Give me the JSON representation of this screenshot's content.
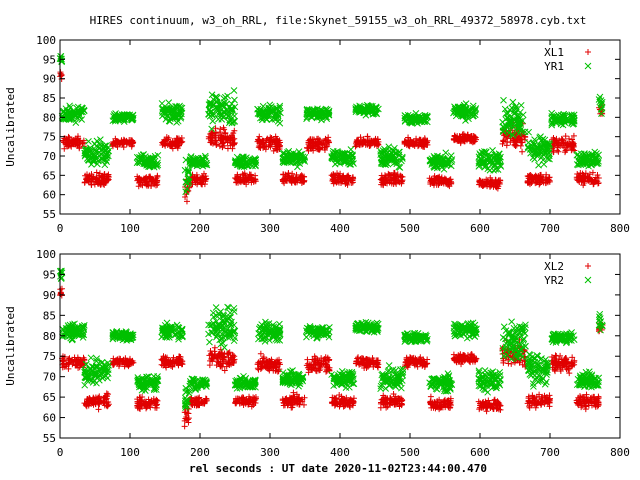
{
  "title": "HIRES continuum, w3_oh_RRL, file:Skynet_59155_w3_oh_RRL_49372_58978.cyb.txt",
  "xlabel": "rel seconds : UT date 2020-11-02T23:44:00.470",
  "colors": {
    "red": "#e00000",
    "green": "#00c000"
  },
  "chart_data": [
    {
      "type": "scatter",
      "ylabel": "Uncalibrated",
      "xlim": [
        0,
        800
      ],
      "ylim": [
        55,
        100
      ],
      "xticks": [
        0,
        100,
        200,
        300,
        400,
        500,
        600,
        700,
        800
      ],
      "yticks": [
        55,
        60,
        65,
        70,
        75,
        80,
        85,
        90,
        95,
        100
      ],
      "legend_position": "top-right",
      "series": [
        {
          "name": "XL1",
          "marker": "plus",
          "color": "#e00000",
          "segments": [
            {
              "x": [
                0,
                3
              ],
              "y": 90.5,
              "spread": 1.0
            },
            {
              "x": [
                3,
                35
              ],
              "y": 73.5,
              "spread": 1.2
            },
            {
              "x": [
                35,
                70
              ],
              "y": 64.0,
              "spread": 1.2
            },
            {
              "x": [
                75,
                105
              ],
              "y": 73.5,
              "spread": 0.8
            },
            {
              "x": [
                110,
                140
              ],
              "y": 63.5,
              "spread": 1.2
            },
            {
              "x": [
                145,
                175
              ],
              "y": 73.5,
              "spread": 1.0
            },
            {
              "x": [
                178,
                185
              ],
              "y": 61.0,
              "spread": 2.5
            },
            {
              "x": [
                185,
                210
              ],
              "y": 64.0,
              "spread": 1.0
            },
            {
              "x": [
                212,
                250
              ],
              "y": 74.5,
              "spread": 2.0
            },
            {
              "x": [
                250,
                280
              ],
              "y": 64.0,
              "spread": 1.0
            },
            {
              "x": [
                282,
                315
              ],
              "y": 73.0,
              "spread": 1.5
            },
            {
              "x": [
                318,
                350
              ],
              "y": 64.0,
              "spread": 1.2
            },
            {
              "x": [
                352,
                385
              ],
              "y": 73.0,
              "spread": 1.5
            },
            {
              "x": [
                388,
                420
              ],
              "y": 64.0,
              "spread": 1.2
            },
            {
              "x": [
                422,
                455
              ],
              "y": 73.5,
              "spread": 1.0
            },
            {
              "x": [
                458,
                490
              ],
              "y": 64.0,
              "spread": 1.2
            },
            {
              "x": [
                492,
                525
              ],
              "y": 73.5,
              "spread": 1.0
            },
            {
              "x": [
                528,
                560
              ],
              "y": 63.5,
              "spread": 1.0
            },
            {
              "x": [
                562,
                595
              ],
              "y": 74.5,
              "spread": 1.0
            },
            {
              "x": [
                598,
                630
              ],
              "y": 63.0,
              "spread": 1.0
            },
            {
              "x": [
                632,
                665
              ],
              "y": 75.0,
              "spread": 2.5
            },
            {
              "x": [
                668,
                700
              ],
              "y": 64.0,
              "spread": 1.2
            },
            {
              "x": [
                702,
                735
              ],
              "y": 73.0,
              "spread": 1.5
            },
            {
              "x": [
                738,
                770
              ],
              "y": 64.0,
              "spread": 1.2
            },
            {
              "x": [
                770,
                775
              ],
              "y": 82.0,
              "spread": 1.5
            }
          ]
        },
        {
          "name": "YR1",
          "marker": "cross",
          "color": "#00c000",
          "segments": [
            {
              "x": [
                0,
                3
              ],
              "y": 95.0,
              "spread": 1.0
            },
            {
              "x": [
                3,
                35
              ],
              "y": 81.0,
              "spread": 1.5
            },
            {
              "x": [
                35,
                70
              ],
              "y": 71.0,
              "spread": 2.5
            },
            {
              "x": [
                75,
                105
              ],
              "y": 80.0,
              "spread": 0.8
            },
            {
              "x": [
                110,
                140
              ],
              "y": 68.5,
              "spread": 1.5
            },
            {
              "x": [
                145,
                175
              ],
              "y": 81.0,
              "spread": 1.8
            },
            {
              "x": [
                178,
                185
              ],
              "y": 65.0,
              "spread": 3.0
            },
            {
              "x": [
                185,
                210
              ],
              "y": 68.5,
              "spread": 1.0
            },
            {
              "x": [
                212,
                250
              ],
              "y": 82.0,
              "spread": 3.5
            },
            {
              "x": [
                250,
                280
              ],
              "y": 68.5,
              "spread": 1.0
            },
            {
              "x": [
                282,
                315
              ],
              "y": 81.0,
              "spread": 2.0
            },
            {
              "x": [
                318,
                350
              ],
              "y": 69.5,
              "spread": 1.5
            },
            {
              "x": [
                352,
                385
              ],
              "y": 81.0,
              "spread": 1.2
            },
            {
              "x": [
                388,
                420
              ],
              "y": 69.5,
              "spread": 1.5
            },
            {
              "x": [
                422,
                455
              ],
              "y": 82.0,
              "spread": 1.0
            },
            {
              "x": [
                458,
                490
              ],
              "y": 69.5,
              "spread": 2.0
            },
            {
              "x": [
                492,
                525
              ],
              "y": 79.5,
              "spread": 1.0
            },
            {
              "x": [
                528,
                560
              ],
              "y": 68.5,
              "spread": 1.5
            },
            {
              "x": [
                562,
                595
              ],
              "y": 81.5,
              "spread": 1.5
            },
            {
              "x": [
                598,
                630
              ],
              "y": 69.0,
              "spread": 2.0
            },
            {
              "x": [
                632,
                665
              ],
              "y": 79.0,
              "spread": 3.5
            },
            {
              "x": [
                668,
                700
              ],
              "y": 72.0,
              "spread": 3.0
            },
            {
              "x": [
                702,
                735
              ],
              "y": 79.5,
              "spread": 1.0
            },
            {
              "x": [
                738,
                770
              ],
              "y": 69.0,
              "spread": 1.5
            },
            {
              "x": [
                770,
                775
              ],
              "y": 83.5,
              "spread": 1.5
            }
          ]
        }
      ]
    },
    {
      "type": "scatter",
      "ylabel": "Uncalibrated",
      "xlim": [
        0,
        800
      ],
      "ylim": [
        55,
        100
      ],
      "xticks": [
        0,
        100,
        200,
        300,
        400,
        500,
        600,
        700,
        800
      ],
      "yticks": [
        55,
        60,
        65,
        70,
        75,
        80,
        85,
        90,
        95,
        100
      ],
      "legend_position": "top-right",
      "series": [
        {
          "name": "XL2",
          "marker": "plus",
          "color": "#e00000",
          "segments": [
            {
              "x": [
                0,
                3
              ],
              "y": 90.5,
              "spread": 1.0
            },
            {
              "x": [
                3,
                35
              ],
              "y": 73.5,
              "spread": 1.2
            },
            {
              "x": [
                35,
                70
              ],
              "y": 64.0,
              "spread": 1.2
            },
            {
              "x": [
                75,
                105
              ],
              "y": 73.5,
              "spread": 0.8
            },
            {
              "x": [
                110,
                140
              ],
              "y": 63.5,
              "spread": 1.2
            },
            {
              "x": [
                145,
                175
              ],
              "y": 73.5,
              "spread": 1.0
            },
            {
              "x": [
                178,
                185
              ],
              "y": 61.0,
              "spread": 2.5
            },
            {
              "x": [
                185,
                210
              ],
              "y": 64.0,
              "spread": 1.0
            },
            {
              "x": [
                212,
                250
              ],
              "y": 74.5,
              "spread": 2.0
            },
            {
              "x": [
                250,
                280
              ],
              "y": 64.0,
              "spread": 1.0
            },
            {
              "x": [
                282,
                315
              ],
              "y": 73.0,
              "spread": 1.5
            },
            {
              "x": [
                318,
                350
              ],
              "y": 64.0,
              "spread": 1.2
            },
            {
              "x": [
                352,
                385
              ],
              "y": 73.0,
              "spread": 1.5
            },
            {
              "x": [
                388,
                420
              ],
              "y": 64.0,
              "spread": 1.2
            },
            {
              "x": [
                422,
                455
              ],
              "y": 73.5,
              "spread": 1.0
            },
            {
              "x": [
                458,
                490
              ],
              "y": 64.0,
              "spread": 1.2
            },
            {
              "x": [
                492,
                525
              ],
              "y": 73.5,
              "spread": 1.0
            },
            {
              "x": [
                528,
                560
              ],
              "y": 63.5,
              "spread": 1.0
            },
            {
              "x": [
                562,
                595
              ],
              "y": 74.5,
              "spread": 1.0
            },
            {
              "x": [
                598,
                630
              ],
              "y": 63.0,
              "spread": 1.0
            },
            {
              "x": [
                632,
                665
              ],
              "y": 75.0,
              "spread": 2.5
            },
            {
              "x": [
                668,
                700
              ],
              "y": 64.0,
              "spread": 1.2
            },
            {
              "x": [
                702,
                735
              ],
              "y": 73.0,
              "spread": 1.5
            },
            {
              "x": [
                738,
                770
              ],
              "y": 64.0,
              "spread": 1.2
            },
            {
              "x": [
                770,
                775
              ],
              "y": 82.0,
              "spread": 1.5
            }
          ]
        },
        {
          "name": "YR2",
          "marker": "cross",
          "color": "#00c000",
          "segments": [
            {
              "x": [
                0,
                3
              ],
              "y": 95.0,
              "spread": 1.0
            },
            {
              "x": [
                3,
                35
              ],
              "y": 81.0,
              "spread": 1.5
            },
            {
              "x": [
                35,
                70
              ],
              "y": 71.0,
              "spread": 2.5
            },
            {
              "x": [
                75,
                105
              ],
              "y": 80.0,
              "spread": 0.8
            },
            {
              "x": [
                110,
                140
              ],
              "y": 68.5,
              "spread": 1.5
            },
            {
              "x": [
                145,
                175
              ],
              "y": 81.0,
              "spread": 1.8
            },
            {
              "x": [
                178,
                185
              ],
              "y": 65.0,
              "spread": 3.0
            },
            {
              "x": [
                185,
                210
              ],
              "y": 68.5,
              "spread": 1.0
            },
            {
              "x": [
                212,
                250
              ],
              "y": 82.0,
              "spread": 3.5
            },
            {
              "x": [
                250,
                280
              ],
              "y": 68.5,
              "spread": 1.0
            },
            {
              "x": [
                282,
                315
              ],
              "y": 81.0,
              "spread": 2.0
            },
            {
              "x": [
                318,
                350
              ],
              "y": 69.5,
              "spread": 1.5
            },
            {
              "x": [
                352,
                385
              ],
              "y": 81.0,
              "spread": 1.2
            },
            {
              "x": [
                388,
                420
              ],
              "y": 69.5,
              "spread": 1.5
            },
            {
              "x": [
                422,
                455
              ],
              "y": 82.0,
              "spread": 1.0
            },
            {
              "x": [
                458,
                490
              ],
              "y": 69.5,
              "spread": 2.0
            },
            {
              "x": [
                492,
                525
              ],
              "y": 79.5,
              "spread": 1.0
            },
            {
              "x": [
                528,
                560
              ],
              "y": 68.5,
              "spread": 1.5
            },
            {
              "x": [
                562,
                595
              ],
              "y": 81.5,
              "spread": 1.5
            },
            {
              "x": [
                598,
                630
              ],
              "y": 69.0,
              "spread": 2.0
            },
            {
              "x": [
                632,
                665
              ],
              "y": 79.0,
              "spread": 3.5
            },
            {
              "x": [
                668,
                700
              ],
              "y": 72.0,
              "spread": 3.0
            },
            {
              "x": [
                702,
                735
              ],
              "y": 79.5,
              "spread": 1.0
            },
            {
              "x": [
                738,
                770
              ],
              "y": 69.0,
              "spread": 1.5
            },
            {
              "x": [
                770,
                775
              ],
              "y": 83.5,
              "spread": 1.5
            }
          ]
        }
      ]
    }
  ]
}
